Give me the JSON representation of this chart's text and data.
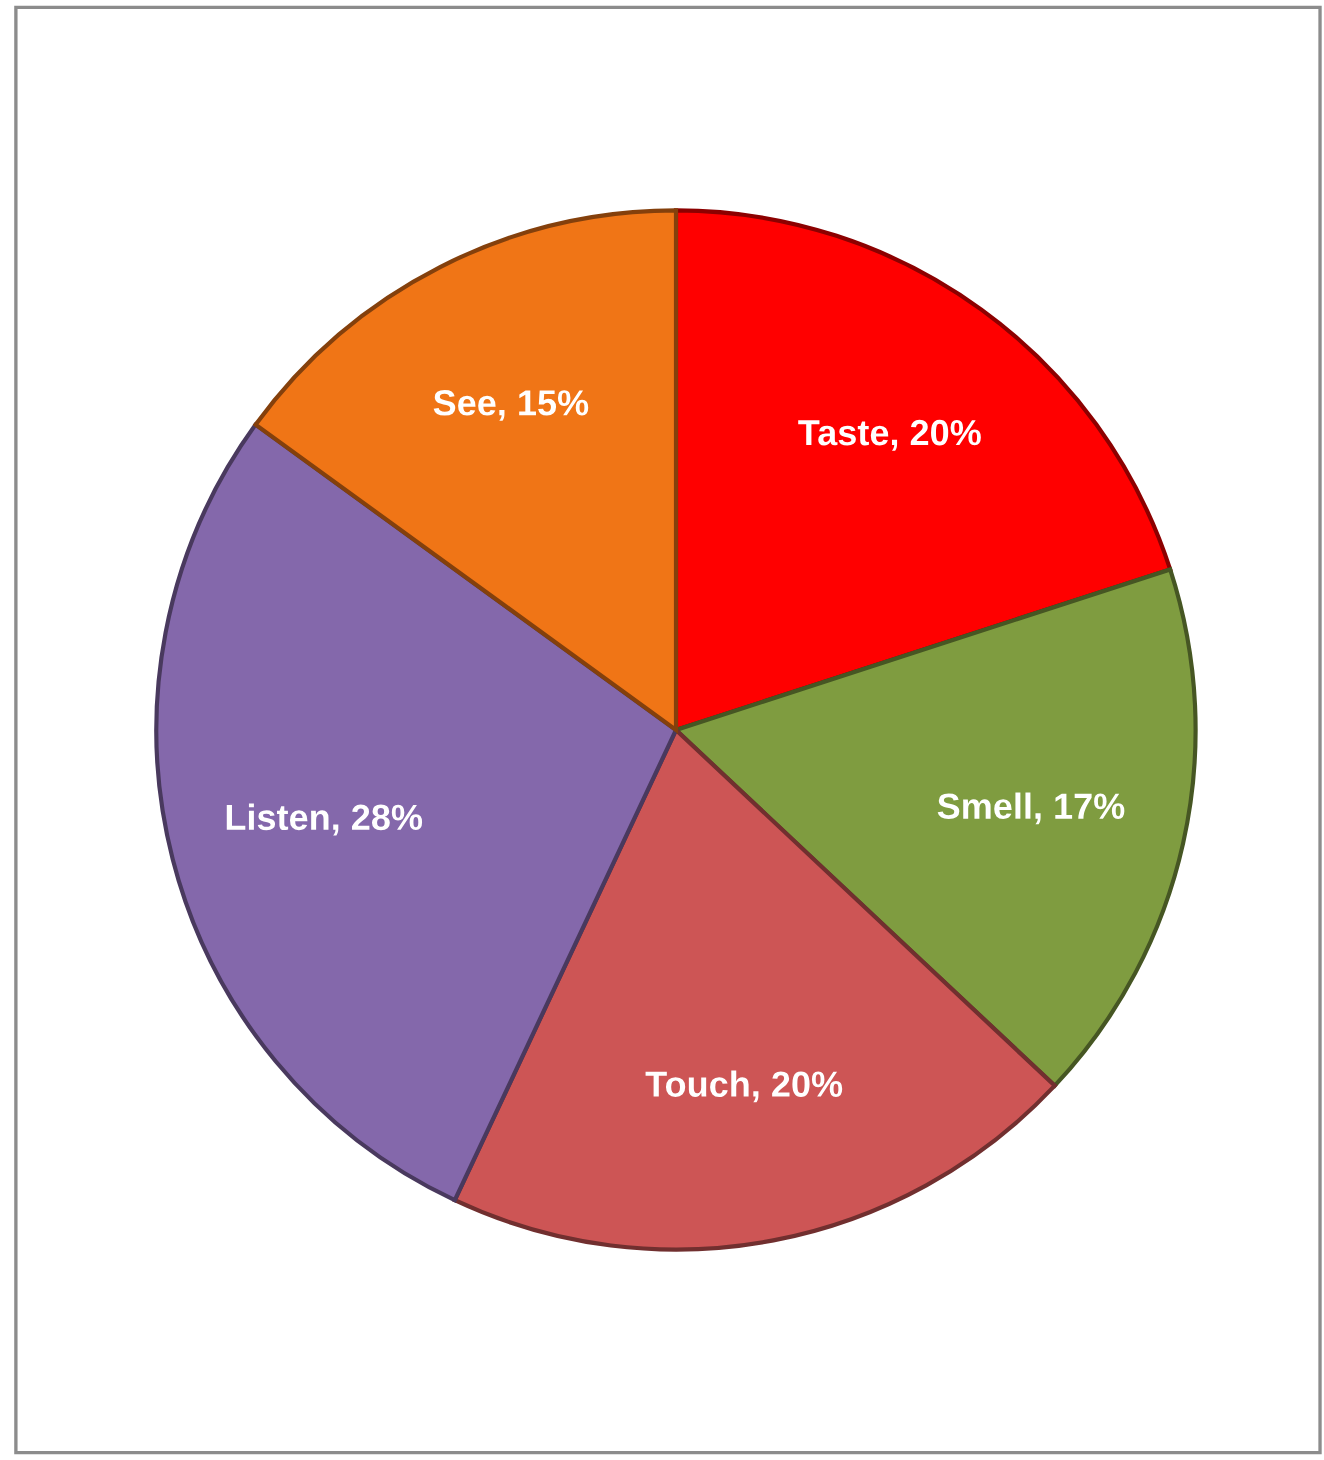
{
  "chart_data": {
    "type": "pie",
    "categories": [
      "Taste",
      "Smell",
      "Touch",
      "Listen",
      "See"
    ],
    "values": [
      20,
      17,
      20,
      28,
      15
    ],
    "value_labels": [
      ", 20%",
      ", 17%",
      ", 20%",
      ", 28%",
      ", 15%"
    ],
    "colors": [
      "#ff0000",
      "#7f9c40",
      "#cd5555",
      "#8468ab",
      "#f07516"
    ]
  }
}
